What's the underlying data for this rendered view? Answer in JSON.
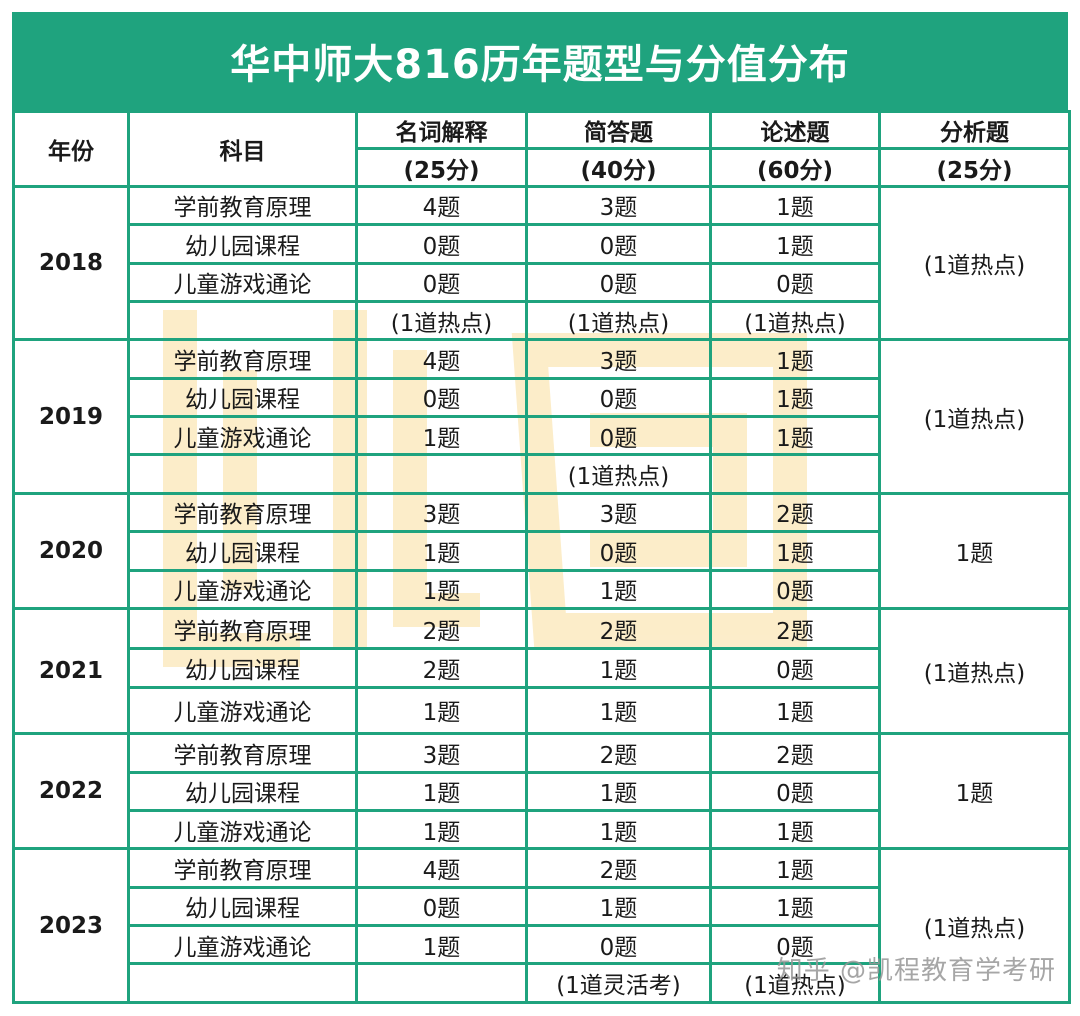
{
  "title": "华中师大816历年题型与分值分布",
  "header": {
    "year": "年份",
    "subject": "科目",
    "q1_name": "名词解释",
    "q1_score": "(25分)",
    "q2_name": "简答题",
    "q2_score": "(40分)",
    "q3_name": "论述题",
    "q3_score": "(60分)",
    "q4_name": "分析题",
    "q4_score": "(25分)"
  },
  "rows": [
    {
      "year": "2018",
      "analysis": "(1道热点)",
      "r": [
        [
          "学前教育原理",
          "4题",
          "3题",
          "1题"
        ],
        [
          "幼儿园课程",
          "0题",
          "0题",
          "1题"
        ],
        [
          "儿童游戏通论",
          "0题",
          "0题",
          "0题"
        ],
        [
          "",
          "(1道热点)",
          "(1道热点)",
          "(1道热点)"
        ]
      ]
    },
    {
      "year": "2019",
      "analysis": "(1道热点)",
      "r": [
        [
          "学前教育原理",
          "4题",
          "3题",
          "1题"
        ],
        [
          "幼儿园课程",
          "0题",
          "0题",
          "1题"
        ],
        [
          "儿童游戏通论",
          "1题",
          "0题",
          "1题"
        ],
        [
          "",
          "",
          "(1道热点)",
          ""
        ]
      ]
    },
    {
      "year": "2020",
      "analysis": "1题",
      "r": [
        [
          "学前教育原理",
          "3题",
          "3题",
          "2题"
        ],
        [
          "幼儿园课程",
          "1题",
          "0题",
          "1题"
        ],
        [
          "儿童游戏通论",
          "1题",
          "1题",
          "0题"
        ]
      ]
    },
    {
      "year": "2021",
      "analysis": "(1道热点)",
      "r": [
        [
          "学前教育原理",
          "2题",
          "2题",
          "2题"
        ],
        [
          "幼儿园课程",
          "2题",
          "1题",
          "0题"
        ],
        [
          "儿童游戏通论",
          "1题",
          "1题",
          "1题"
        ]
      ]
    },
    {
      "year": "2022",
      "analysis": "1题",
      "r": [
        [
          "学前教育原理",
          "3题",
          "2题",
          "2题"
        ],
        [
          "幼儿园课程",
          "1题",
          "1题",
          "0题"
        ],
        [
          "儿童游戏通论",
          "1题",
          "1题",
          "1题"
        ]
      ]
    },
    {
      "year": "2023",
      "analysis": "(1道热点)",
      "r": [
        [
          "学前教育原理",
          "4题",
          "2题",
          "1题"
        ],
        [
          "幼儿园课程",
          "0题",
          "1题",
          "1题"
        ],
        [
          "儿童游戏通论",
          "1题",
          "0题",
          "0题"
        ],
        [
          "",
          "",
          "(1道灵活考)",
          "(1道热点)"
        ]
      ]
    }
  ],
  "credit": "知乎 @凯程教育学考研",
  "colors": {
    "accent": "#1fa37e",
    "watermark": "#fbe7b8"
  }
}
